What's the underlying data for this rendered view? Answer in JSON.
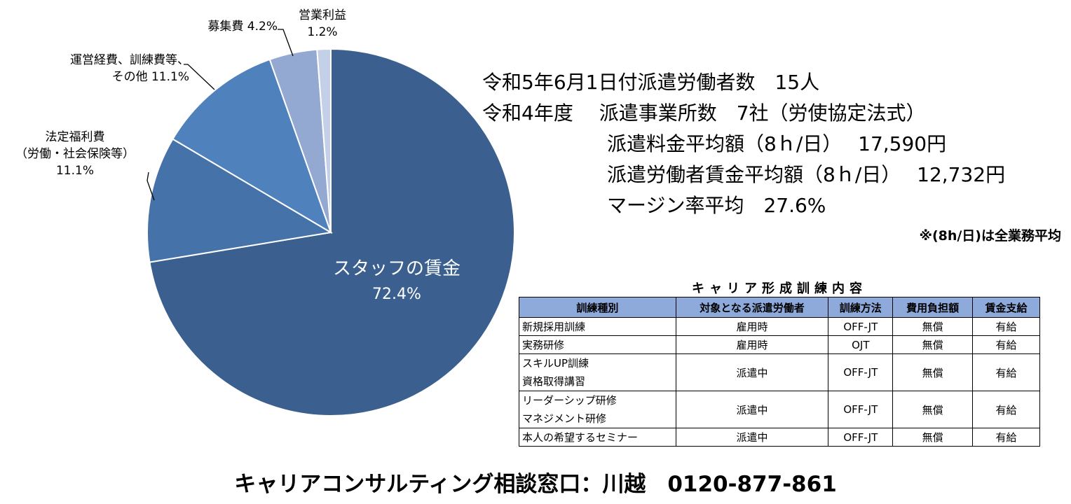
{
  "chart_data": {
    "type": "pie",
    "slices": [
      {
        "label": "スタッフの賃金",
        "value": 72.4,
        "display": "72.4%",
        "color": "#3b5f8e"
      },
      {
        "label": "法定福利費（労働・社会保険等）",
        "value": 11.1,
        "display": "11.1%",
        "color": "#4672aa"
      },
      {
        "label": "運営経費、訓練費等、その他",
        "value": 11.1,
        "display": "11.1%",
        "color": "#4f81bd"
      },
      {
        "label": "募集費",
        "value": 4.2,
        "display": "4.2%",
        "color": "#94a9d2"
      },
      {
        "label": "営業利益",
        "value": 1.2,
        "display": "1.2%",
        "color": "#c4d0e8"
      }
    ],
    "labels": {
      "wage_title": "スタッフの賃金",
      "wage_pct": "72.4%",
      "welfare_l1": "法定福利費",
      "welfare_l2": "（労働・社会保険等）",
      "welfare_pct": "11.1%",
      "ops_l1": "運営経費、訓練費等、",
      "ops_l2": "その他 11.1%",
      "recruit": "募集費 4.2%",
      "profit_l1": "営業利益",
      "profit_l2": "1.2%"
    }
  },
  "info": {
    "line1": "令和5年6月1日付派遣労働者数　15人",
    "line2": "令和4年度　 派遣事業所数　7社（労使協定法式）",
    "line3": "派遣料金平均額（8ｈ/日）　 17,590円",
    "line4": "派遣労働者賃金平均額（8ｈ/日）　 12,732円",
    "line5": "マージン率平均　27.6%",
    "note": "※(8h/日)は全業務平均"
  },
  "training": {
    "title": "キャリア形成訓練内容",
    "headers": [
      "訓練種別",
      "対象となる派遣労働者",
      "訓練方法",
      "費用負担額",
      "賃金支給"
    ],
    "rows": [
      {
        "type": "新規採用訓練",
        "target": "雇用時",
        "method": "OFF-JT",
        "cost": "無償",
        "pay": "有給"
      },
      {
        "type": "実務研修",
        "target": "雇用時",
        "method": "OJT",
        "cost": "無償",
        "pay": "有給"
      },
      {
        "type_l1": "スキルUP訓練",
        "type_l2": "資格取得講習",
        "target": "派遣中",
        "method": "OFF-JT",
        "cost": "無償",
        "pay": "有給"
      },
      {
        "type_l1": "リーダーシップ研修",
        "type_l2": "マネジメント研修",
        "target": "派遣中",
        "method": "OFF-JT",
        "cost": "無償",
        "pay": "有給"
      },
      {
        "type": "本人の希望するセミナー",
        "target": "派遣中",
        "method": "OFF-JT",
        "cost": "無償",
        "pay": "有給"
      }
    ]
  },
  "footer": {
    "text": "キャリアコンサルティング相談窓口：川越　0120-877-861"
  }
}
